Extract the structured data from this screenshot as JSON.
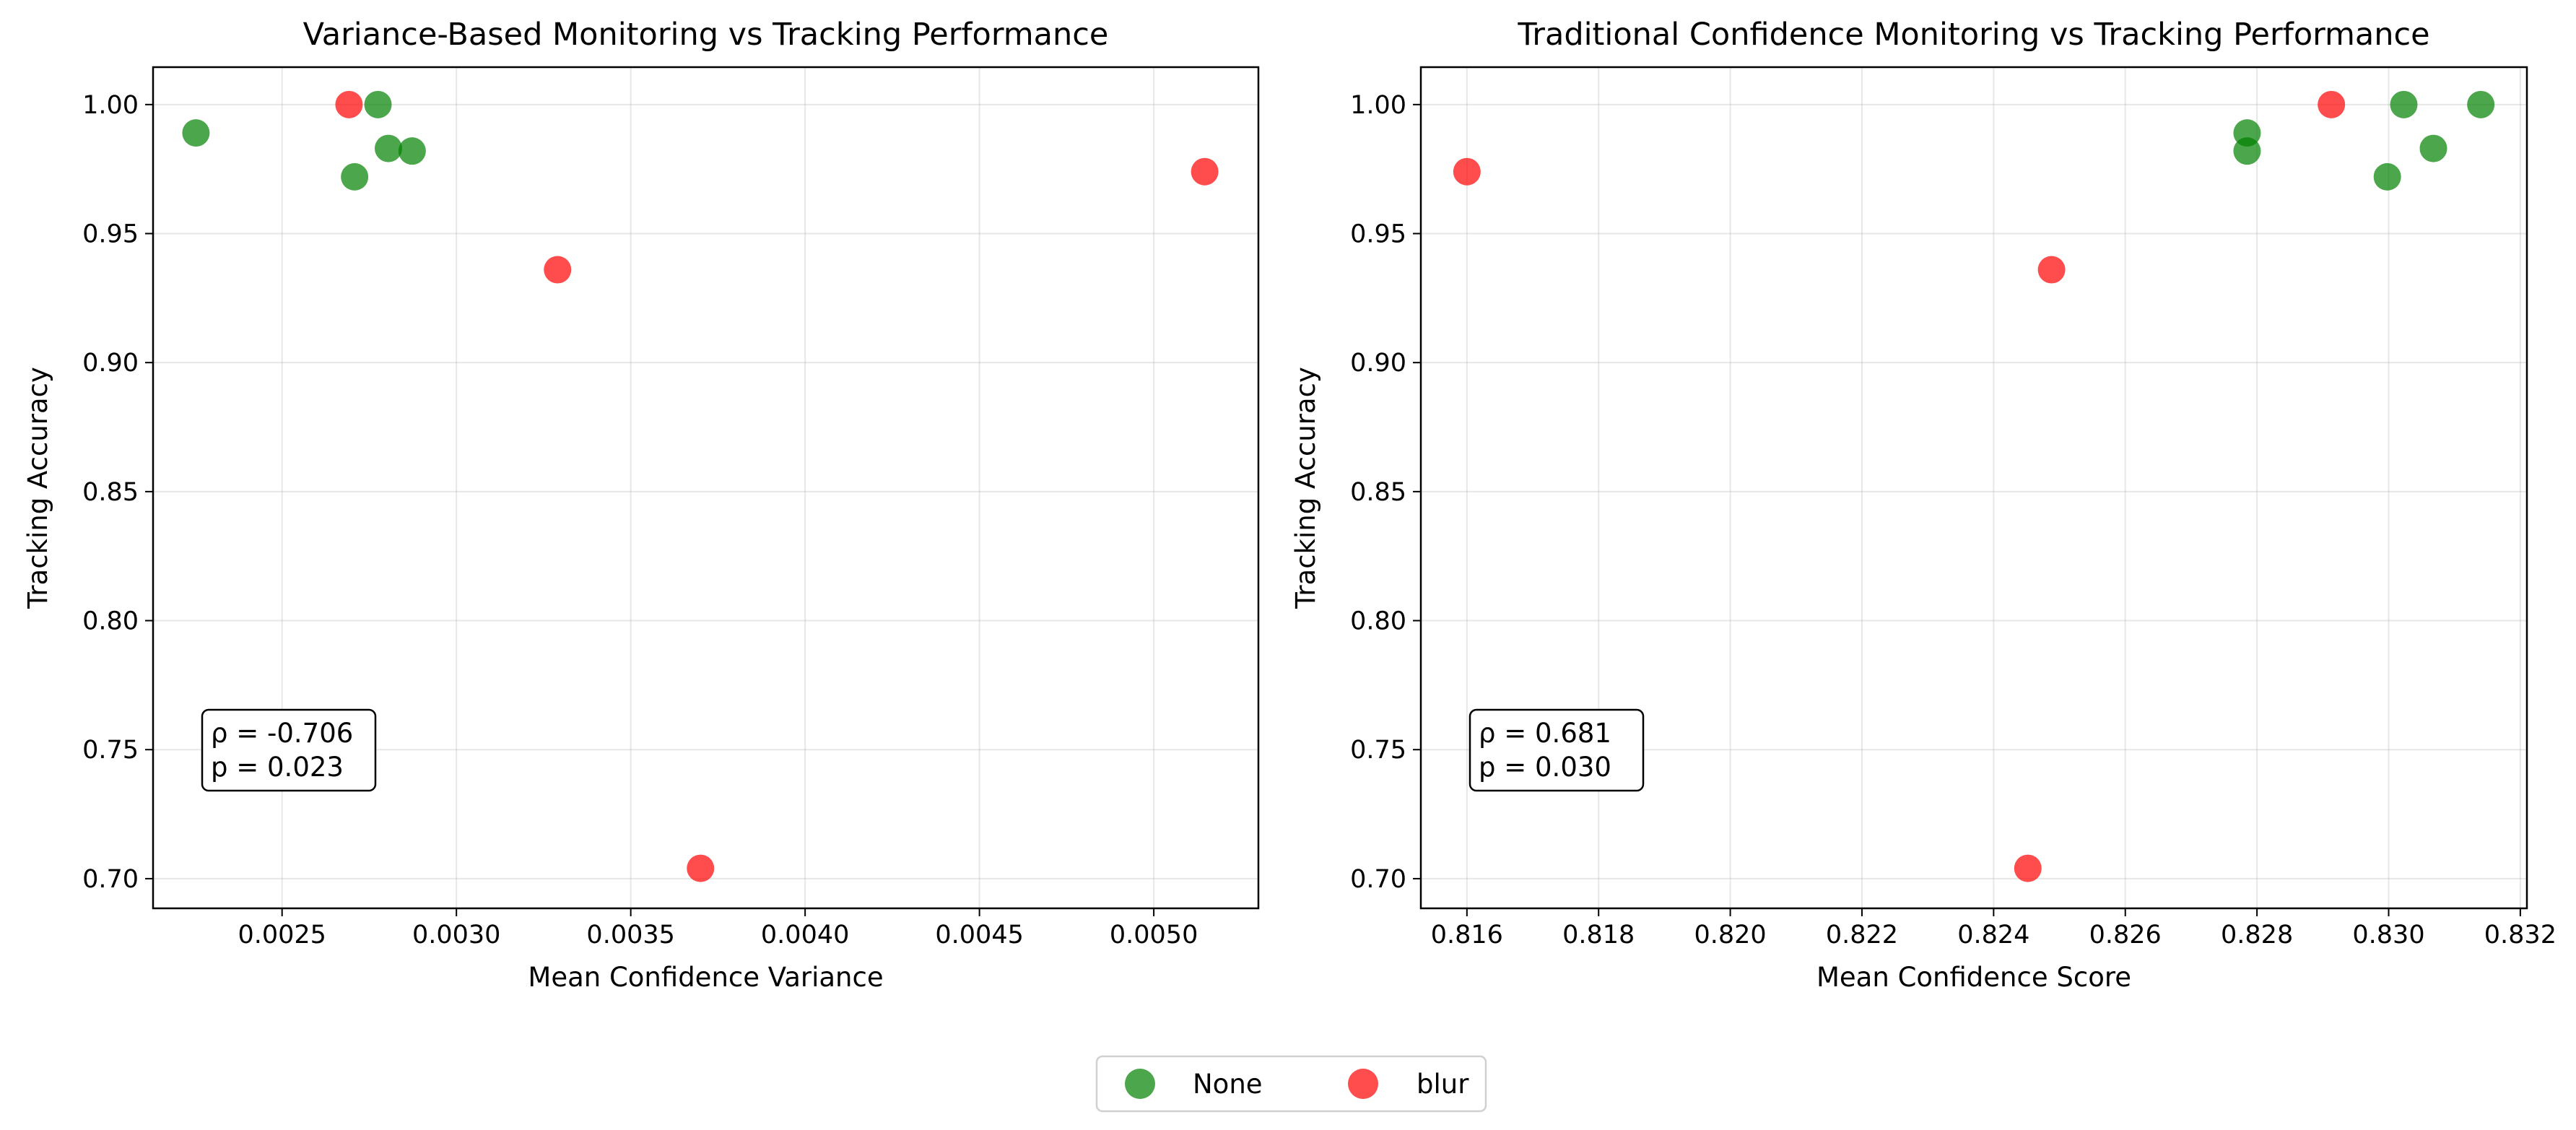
{
  "chart_data": [
    {
      "type": "scatter",
      "title": "Variance-Based Monitoring vs Tracking Performance",
      "xlabel": "Mean Confidence Variance",
      "ylabel": "Tracking Accuracy",
      "xlim": [
        0.00213,
        0.0053
      ],
      "ylim": [
        0.6885,
        1.0145
      ],
      "xticks": [
        0.0025,
        0.003,
        0.0035,
        0.004,
        0.0045,
        0.005
      ],
      "xtick_labels": [
        "0.0025",
        "0.0030",
        "0.0035",
        "0.0040",
        "0.0045",
        "0.0050"
      ],
      "yticks": [
        0.7,
        0.75,
        0.8,
        0.85,
        0.9,
        0.95,
        1.0
      ],
      "ytick_labels": [
        "0.70",
        "0.75",
        "0.80",
        "0.85",
        "0.90",
        "0.95",
        "1.00"
      ],
      "grid": true,
      "annotation": [
        "ρ = -0.706",
        "p = 0.023"
      ],
      "series": [
        {
          "name": "None",
          "color": "#008000",
          "points": [
            [
              0.002253,
              0.989
            ],
            [
              0.002775,
              1.0
            ],
            [
              0.002708,
              0.972
            ],
            [
              0.002805,
              0.983
            ],
            [
              0.002873,
              0.982
            ]
          ]
        },
        {
          "name": "blur",
          "color": "#ff0000",
          "points": [
            [
              0.002692,
              1.0
            ],
            [
              0.00329,
              0.936
            ],
            [
              0.005146,
              0.974
            ],
            [
              0.0037,
              0.704
            ]
          ]
        }
      ]
    },
    {
      "type": "scatter",
      "title": "Traditional Confidence Monitoring vs Tracking Performance",
      "xlabel": "Mean Confidence Score",
      "ylabel": "Tracking Accuracy",
      "xlim": [
        0.8153,
        0.8321
      ],
      "ylim": [
        0.6885,
        1.0145
      ],
      "xticks": [
        0.816,
        0.818,
        0.82,
        0.822,
        0.824,
        0.826,
        0.828,
        0.83,
        0.832
      ],
      "xtick_labels": [
        "0.816",
        "0.818",
        "0.820",
        "0.822",
        "0.824",
        "0.826",
        "0.828",
        "0.830",
        "0.832"
      ],
      "yticks": [
        0.7,
        0.75,
        0.8,
        0.85,
        0.9,
        0.95,
        1.0
      ],
      "ytick_labels": [
        "0.70",
        "0.75",
        "0.80",
        "0.85",
        "0.90",
        "0.95",
        "1.00"
      ],
      "grid": true,
      "annotation": [
        "ρ = 0.681",
        "p = 0.030"
      ],
      "series": [
        {
          "name": "None",
          "color": "#008000",
          "points": [
            [
              0.82785,
              0.989
            ],
            [
              0.82785,
              0.982
            ],
            [
              0.83023,
              1.0
            ],
            [
              0.8314,
              1.0
            ],
            [
              0.82998,
              0.972
            ],
            [
              0.83068,
              0.983
            ]
          ]
        },
        {
          "name": "blur",
          "color": "#ff0000",
          "points": [
            [
              0.816,
              0.974
            ],
            [
              0.82488,
              0.936
            ],
            [
              0.82913,
              1.0
            ],
            [
              0.82452,
              0.704
            ]
          ]
        }
      ]
    }
  ],
  "legend": {
    "placement": "bottom-center",
    "entries": [
      {
        "label": "None",
        "color": "#008000"
      },
      {
        "label": "blur",
        "color": "#ff0000"
      }
    ]
  }
}
